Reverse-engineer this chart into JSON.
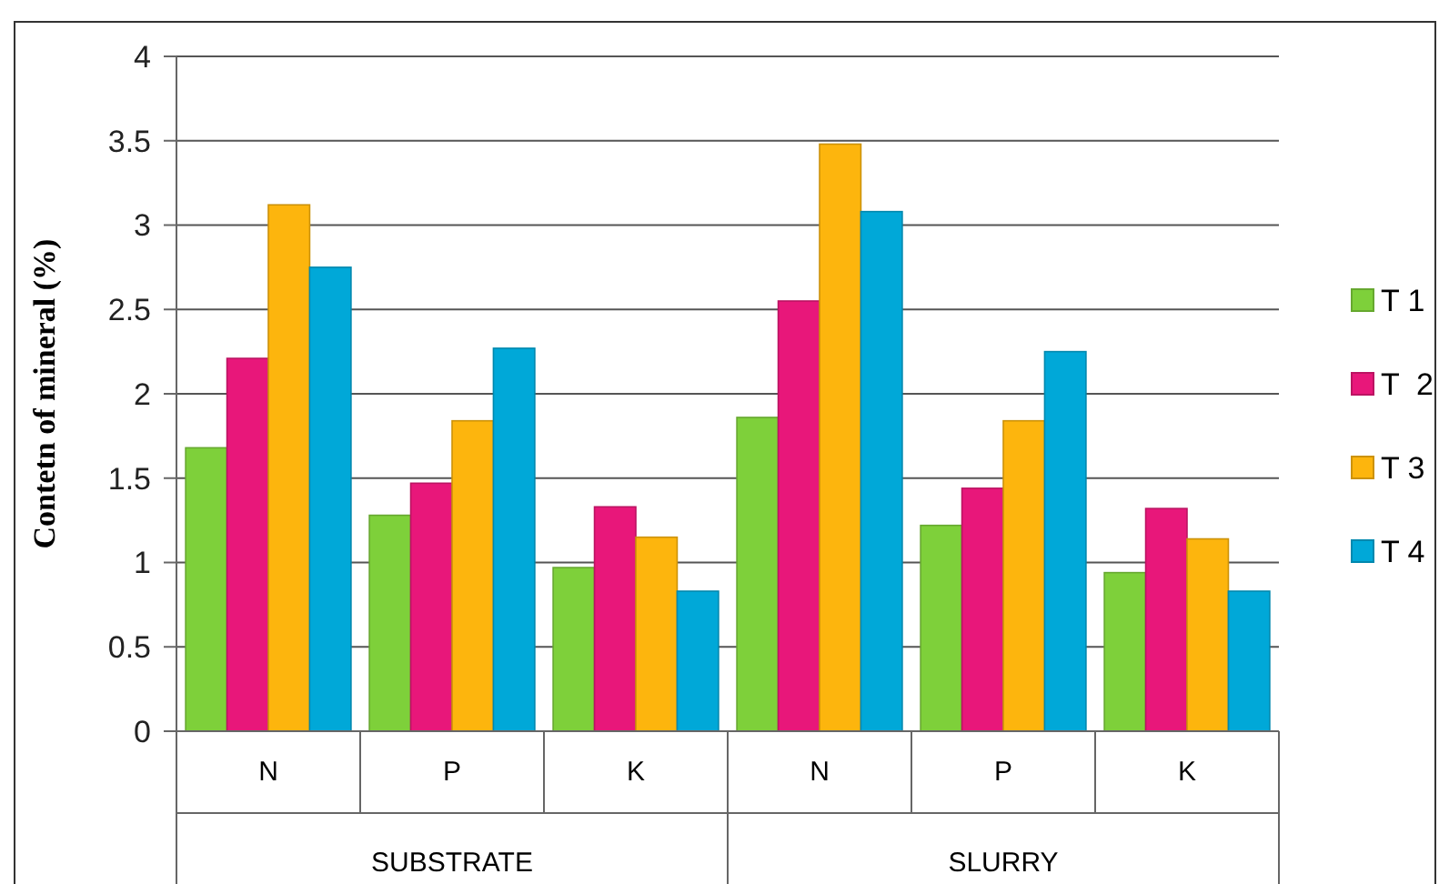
{
  "chart_data": {
    "type": "bar",
    "ylabel": "Contetn of mineral (%)",
    "categories": [
      "N",
      "P",
      "K",
      "N",
      "P",
      "K"
    ],
    "annotations": [
      "SUBSTRATE",
      "SLURRY"
    ],
    "series": [
      {
        "name": "T 1",
        "color": "#7ed03a",
        "values": [
          1.68,
          1.28,
          0.97,
          1.86,
          1.22,
          0.94
        ]
      },
      {
        "name": "T  2",
        "color": "#e8177a",
        "values": [
          2.21,
          1.47,
          1.33,
          2.55,
          1.44,
          1.32
        ]
      },
      {
        "name": "T 3",
        "color": "#fdb50d",
        "values": [
          3.12,
          1.84,
          1.15,
          3.48,
          1.84,
          1.14
        ]
      },
      {
        "name": "T 4",
        "color": "#00a8d8",
        "values": [
          2.75,
          2.27,
          0.83,
          3.08,
          2.25,
          0.83
        ]
      }
    ],
    "ylim": [
      0,
      4
    ],
    "yticks": [
      0,
      0.5,
      1,
      1.5,
      2,
      2.5,
      3,
      3.5,
      4
    ],
    "grid": "y",
    "legend": "right"
  }
}
